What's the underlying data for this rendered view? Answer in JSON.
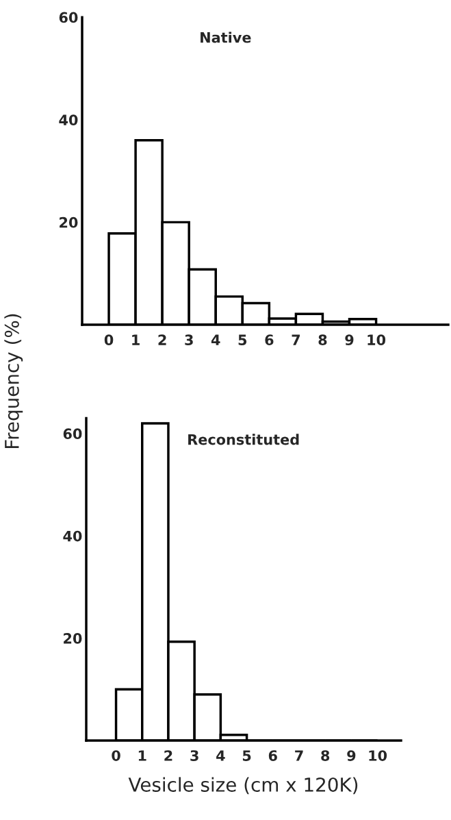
{
  "chart_data": [
    {
      "type": "histogram",
      "title": "Native",
      "ylabel": "Frequency (%)",
      "bins": [
        0,
        1,
        2,
        3,
        4,
        5,
        6,
        7,
        8,
        9,
        10
      ],
      "values": [
        17.8,
        36,
        20,
        10.8,
        5.5,
        4.2,
        1.2,
        2.1,
        0.6,
        1.1
      ],
      "color": "#ffffff",
      "xlim": [
        -1.0,
        12.7
      ],
      "ylim": [
        0,
        60
      ],
      "xticks": [
        0,
        1,
        2,
        3,
        4,
        5,
        6,
        7,
        8,
        9,
        10
      ],
      "yticks": [
        20,
        40,
        60
      ],
      "grid": false
    },
    {
      "type": "histogram",
      "title": "Reconstituted",
      "xlabel": "Vesicle size (cm x 120K)",
      "bins": [
        0,
        1,
        2,
        3,
        4,
        5,
        6,
        7,
        8,
        9,
        10
      ],
      "values": [
        10,
        62,
        19.3,
        9,
        1.1,
        0,
        0,
        0,
        0,
        0
      ],
      "color": "#ffffff",
      "xlim": [
        -1.14,
        10.9
      ],
      "ylim": [
        0,
        63
      ],
      "xticks": [
        0,
        1,
        2,
        3,
        4,
        5,
        6,
        7,
        8,
        9,
        10
      ],
      "yticks": [
        20,
        40,
        60
      ],
      "grid": false
    }
  ]
}
